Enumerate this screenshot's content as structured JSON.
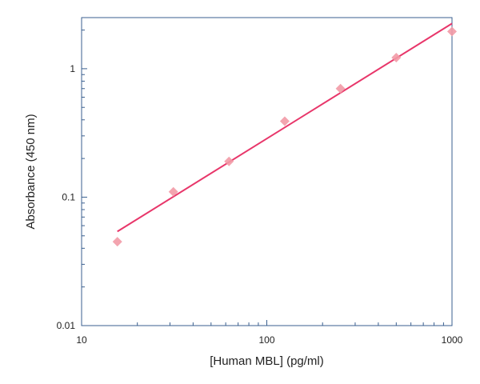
{
  "chart_data": {
    "type": "scatter",
    "xlabel": "[Human MBL] (pg/ml)",
    "ylabel": "Absorbance (450 nm)",
    "x_scale": "log",
    "y_scale": "log",
    "xlim": [
      10,
      1000
    ],
    "ylim": [
      0.01,
      2.5
    ],
    "x_tick_labels": [
      {
        "value": 10,
        "label": "10"
      },
      {
        "value": 100,
        "label": "100"
      },
      {
        "value": 1000,
        "label": "1000"
      }
    ],
    "y_tick_labels": [
      {
        "value": 1,
        "label": "1"
      },
      {
        "value": 0.1,
        "label": "0.1"
      },
      {
        "value": 0.01,
        "label": "0.01"
      }
    ],
    "grid": false,
    "legend": "none",
    "series": [
      {
        "points": [
          {
            "x": 15.6,
            "y": 0.045
          },
          {
            "x": 31.3,
            "y": 0.11
          },
          {
            "x": 62.5,
            "y": 0.19
          },
          {
            "x": 125,
            "y": 0.39
          },
          {
            "x": 250,
            "y": 0.7
          },
          {
            "x": 500,
            "y": 1.22
          },
          {
            "x": 1000,
            "y": 1.95
          }
        ]
      }
    ],
    "fit_line": {
      "x_start": 15.6,
      "y_start": 0.054,
      "x_end": 1000,
      "y_end": 2.25
    },
    "colors": {
      "marker": "#f29aa6",
      "line": "#e8366a",
      "axis": "#3a5f8f"
    }
  }
}
